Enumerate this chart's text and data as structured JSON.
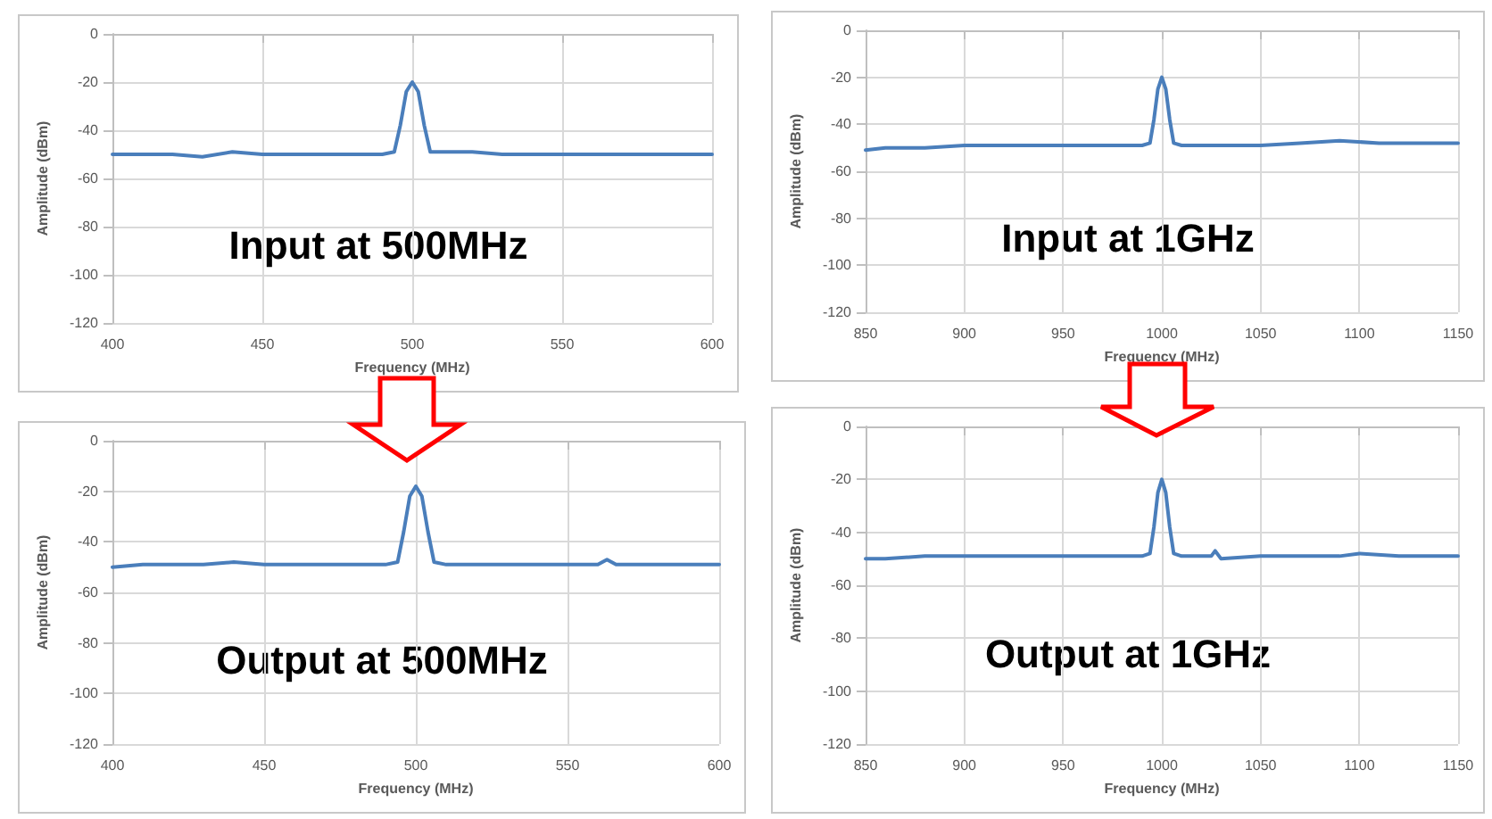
{
  "chart_data": [
    {
      "type": "line",
      "xlabel": "Frequency (MHz)",
      "ylabel": "Amplitude (dBm)",
      "annotations": [
        "Input at 500MHz"
      ],
      "xlim": [
        400,
        600
      ],
      "xticks": [
        400,
        450,
        500,
        550,
        600
      ],
      "ylim": [
        -120,
        0
      ],
      "yticks": [
        -120,
        -100,
        -80,
        -60,
        -40,
        -20,
        0
      ],
      "grid": true,
      "marker": "none",
      "x": [
        400,
        410,
        420,
        430,
        440,
        450,
        460,
        470,
        480,
        490,
        494,
        496,
        498,
        500,
        502,
        504,
        506,
        510,
        520,
        530,
        540,
        550,
        560,
        570,
        580,
        590,
        600
      ],
      "series": [
        {
          "color": "#4a7ebb",
          "values": [
            -50,
            -50,
            -50,
            -51,
            -49,
            -50,
            -50,
            -50,
            -50,
            -50,
            -49,
            -38,
            -24,
            -20,
            -24,
            -38,
            -49,
            -49,
            -49,
            -50,
            -50,
            -50,
            -50,
            -50,
            -50,
            -50,
            -50
          ]
        }
      ]
    },
    {
      "type": "line",
      "xlabel": "Frequency (MHz)",
      "ylabel": "Amplitude (dBm)",
      "annotations": [
        "Input at 1GHz"
      ],
      "xlim": [
        850,
        1150
      ],
      "xticks": [
        850,
        900,
        950,
        1000,
        1050,
        1100,
        1150
      ],
      "ylim": [
        -120,
        0
      ],
      "yticks": [
        -120,
        -100,
        -80,
        -60,
        -40,
        -20,
        0
      ],
      "grid": true,
      "marker": "none",
      "x": [
        850,
        860,
        880,
        900,
        920,
        940,
        960,
        980,
        990,
        994,
        996,
        998,
        1000,
        1002,
        1004,
        1006,
        1010,
        1030,
        1050,
        1070,
        1090,
        1110,
        1130,
        1150
      ],
      "series": [
        {
          "color": "#4a7ebb",
          "values": [
            -51,
            -50,
            -50,
            -49,
            -49,
            -49,
            -49,
            -49,
            -49,
            -48,
            -38,
            -25,
            -20,
            -25,
            -38,
            -48,
            -49,
            -49,
            -49,
            -48,
            -47,
            -48,
            -48,
            -48
          ]
        }
      ]
    },
    {
      "type": "line",
      "xlabel": "Frequency (MHz)",
      "ylabel": "Amplitude (dBm)",
      "annotations": [
        "Output at 500MHz"
      ],
      "xlim": [
        400,
        600
      ],
      "xticks": [
        400,
        450,
        500,
        550,
        600
      ],
      "ylim": [
        -120,
        0
      ],
      "yticks": [
        -120,
        -100,
        -80,
        -60,
        -40,
        -20,
        0
      ],
      "grid": true,
      "marker": "none",
      "x": [
        400,
        410,
        420,
        430,
        440,
        450,
        460,
        470,
        480,
        490,
        494,
        496,
        498,
        500,
        502,
        504,
        506,
        510,
        520,
        530,
        540,
        550,
        560,
        563,
        566,
        570,
        580,
        590,
        600
      ],
      "series": [
        {
          "color": "#4a7ebb",
          "values": [
            -50,
            -49,
            -49,
            -49,
            -48,
            -49,
            -49,
            -49,
            -49,
            -49,
            -48,
            -36,
            -22,
            -18,
            -22,
            -36,
            -48,
            -49,
            -49,
            -49,
            -49,
            -49,
            -49,
            -47,
            -49,
            -49,
            -49,
            -49,
            -49
          ]
        }
      ]
    },
    {
      "type": "line",
      "xlabel": "Frequency (MHz)",
      "ylabel": "Amplitude (dBm)",
      "annotations": [
        "Output at 1GHz"
      ],
      "xlim": [
        850,
        1150
      ],
      "xticks": [
        850,
        900,
        950,
        1000,
        1050,
        1100,
        1150
      ],
      "ylim": [
        -120,
        0
      ],
      "yticks": [
        -120,
        -100,
        -80,
        -60,
        -40,
        -20,
        0
      ],
      "grid": true,
      "marker": "none",
      "x": [
        850,
        860,
        880,
        900,
        920,
        940,
        960,
        980,
        990,
        994,
        996,
        998,
        1000,
        1002,
        1004,
        1006,
        1010,
        1025,
        1027,
        1030,
        1050,
        1070,
        1090,
        1100,
        1120,
        1150
      ],
      "series": [
        {
          "color": "#4a7ebb",
          "values": [
            -50,
            -50,
            -49,
            -49,
            -49,
            -49,
            -49,
            -49,
            -49,
            -48,
            -38,
            -25,
            -20,
            -25,
            -38,
            -48,
            -49,
            -49,
            -47,
            -50,
            -49,
            -49,
            -49,
            -48,
            -49,
            -49
          ]
        }
      ]
    }
  ]
}
